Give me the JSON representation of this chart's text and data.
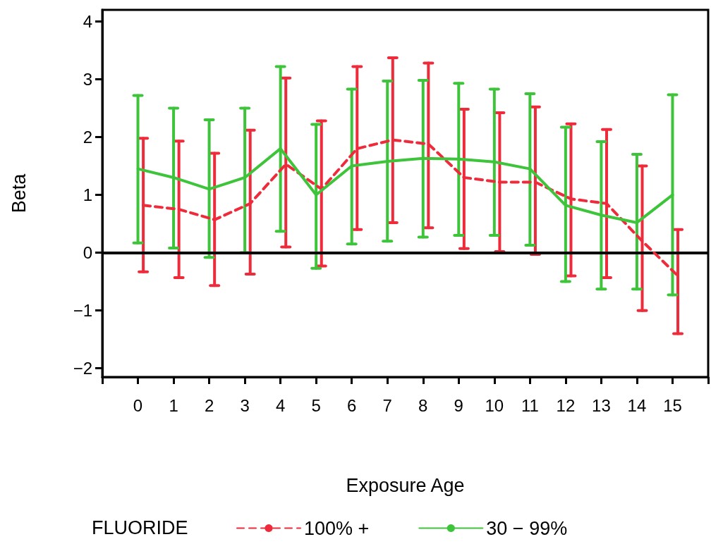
{
  "chart_data": {
    "type": "line",
    "xlabel": "Exposure Age",
    "ylabel": "Beta",
    "legend_title": "FLUORIDE",
    "legend": "bottom",
    "grid": false,
    "marker": "none",
    "x": [
      0,
      1,
      2,
      3,
      4,
      5,
      6,
      7,
      8,
      9,
      10,
      11,
      12,
      13,
      14,
      15
    ],
    "xlim": [
      -1,
      16
    ],
    "xticks": [
      {
        "value": -1,
        "label": null
      },
      0,
      1,
      2,
      3,
      4,
      5,
      6,
      7,
      8,
      9,
      10,
      11,
      12,
      13,
      14,
      15,
      {
        "value": 16,
        "label": null
      }
    ],
    "ylim": [
      -2.15,
      4.2
    ],
    "yticks": [
      {
        "value": -2,
        "label": "−2"
      },
      {
        "value": -1,
        "label": "−1"
      },
      0,
      1,
      2,
      3,
      4
    ],
    "ref_lines": [
      {
        "axis": "y",
        "value": 0,
        "color": "#000000"
      }
    ],
    "series": [
      {
        "name": "100% +",
        "color": "#ee2b3b",
        "line_style": "dashed",
        "x": [
          0.15,
          1.15,
          2.15,
          3.15,
          4.15,
          5.15,
          6.15,
          7.15,
          8.15,
          9.15,
          10.15,
          11.15,
          12.15,
          13.15,
          14.15,
          15.15
        ],
        "values": [
          0.82,
          0.75,
          0.57,
          0.85,
          1.53,
          1.1,
          1.8,
          1.95,
          1.88,
          1.3,
          1.22,
          1.22,
          0.93,
          0.85,
          0.2,
          -0.4
        ],
        "errors": [
          [
            -0.33,
            1.98
          ],
          [
            -0.43,
            1.93
          ],
          [
            -0.57,
            1.72
          ],
          [
            -0.37,
            2.12
          ],
          [
            0.1,
            3.02
          ],
          [
            -0.23,
            2.28
          ],
          [
            0.4,
            3.22
          ],
          [
            0.52,
            3.37
          ],
          [
            0.43,
            3.28
          ],
          [
            0.07,
            2.48
          ],
          [
            0.02,
            2.42
          ],
          [
            -0.03,
            2.52
          ],
          [
            -0.4,
            2.23
          ],
          [
            -0.43,
            2.13
          ],
          [
            -1.0,
            1.5
          ],
          [
            -1.4,
            0.4
          ]
        ]
      },
      {
        "name": "30 − 99%",
        "color": "#3ec43a",
        "line_style": "solid",
        "values": [
          1.45,
          1.3,
          1.1,
          1.3,
          1.8,
          1.0,
          1.5,
          1.58,
          1.63,
          1.62,
          1.57,
          1.45,
          0.82,
          0.65,
          0.52,
          1.0
        ],
        "errors": [
          [
            0.17,
            2.72
          ],
          [
            0.08,
            2.5
          ],
          [
            -0.08,
            2.3
          ],
          [
            0,
            2.5
          ],
          [
            0.37,
            3.22
          ],
          [
            -0.27,
            2.22
          ],
          [
            0.15,
            2.83
          ],
          [
            0.2,
            2.97
          ],
          [
            0.27,
            2.98
          ],
          [
            0.3,
            2.93
          ],
          [
            0.3,
            2.83
          ],
          [
            0.13,
            2.75
          ],
          [
            -0.5,
            2.17
          ],
          [
            -0.63,
            1.92
          ],
          [
            -0.63,
            1.7
          ],
          [
            -0.73,
            2.73
          ]
        ]
      }
    ]
  }
}
